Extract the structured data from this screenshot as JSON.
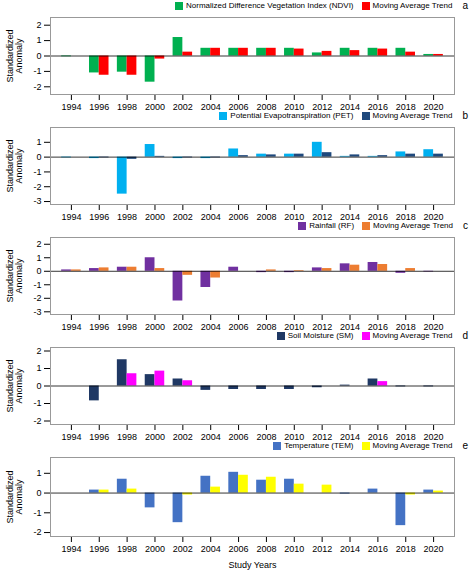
{
  "chart_data": [
    {
      "type": "bar",
      "title": "a",
      "x": [
        1994,
        1996,
        1998,
        2000,
        2002,
        2004,
        2006,
        2008,
        2010,
        2012,
        2014,
        2016,
        2018,
        2020
      ],
      "xlim": [
        1992.5,
        2021.5
      ],
      "xticks": [
        1994,
        1996,
        1998,
        2000,
        2002,
        2004,
        2006,
        2008,
        2010,
        2012,
        2014,
        2016,
        2018,
        2020
      ],
      "ylim": [
        -2.5,
        2.5
      ],
      "yticks": [
        -2,
        -1,
        0,
        1,
        2
      ],
      "ylabel": "Standardized\nAnomaly",
      "series": [
        {
          "name": "Normalized Difference Vegetation Index (NDVI)",
          "color": "#00b050",
          "values": [
            -0.05,
            -1.1,
            -1.05,
            -1.7,
            1.2,
            0.5,
            0.5,
            0.5,
            0.5,
            0.2,
            0.5,
            0.5,
            0.5,
            0.1
          ]
        },
        {
          "name": "Moving Average Trend",
          "color": "#ff0000",
          "values": [
            0.0,
            -1.25,
            -1.25,
            -0.2,
            0.25,
            0.5,
            0.5,
            0.5,
            0.45,
            0.3,
            0.35,
            0.45,
            0.25,
            0.1
          ]
        }
      ],
      "legend": "upper right",
      "grid": false
    },
    {
      "type": "bar",
      "title": "b",
      "x": [
        1994,
        1996,
        1998,
        2000,
        2002,
        2004,
        2006,
        2008,
        2010,
        2012,
        2014,
        2016,
        2018,
        2020
      ],
      "xlim": [
        1992.5,
        2021.5
      ],
      "xticks": [
        1994,
        1996,
        1998,
        2000,
        2002,
        2004,
        2006,
        2008,
        2010,
        2012,
        2014,
        2016,
        2018,
        2020
      ],
      "ylim": [
        -3.2,
        2.0
      ],
      "yticks": [
        -3,
        -2,
        -1,
        0,
        1
      ],
      "ylabel": "Standardized\nAnomaly",
      "series": [
        {
          "name": "Potential Evapotranspiration (PET)",
          "color": "#00b0f0",
          "values": [
            -0.05,
            -0.1,
            -2.5,
            0.85,
            -0.1,
            -0.1,
            0.55,
            0.2,
            0.2,
            1.0,
            0.05,
            0.05,
            0.35,
            0.5
          ]
        },
        {
          "name": "Moving Average Trend",
          "color": "#1f497d",
          "values": [
            0.0,
            -0.05,
            -0.15,
            0.05,
            -0.05,
            -0.05,
            0.1,
            0.15,
            0.2,
            0.3,
            0.15,
            0.1,
            0.2,
            0.2
          ]
        }
      ],
      "legend": "upper right",
      "grid": false
    },
    {
      "type": "bar",
      "title": "c",
      "x": [
        1994,
        1996,
        1998,
        2000,
        2002,
        2004,
        2006,
        2008,
        2010,
        2012,
        2014,
        2016,
        2018,
        2020
      ],
      "xlim": [
        1992.5,
        2021.5
      ],
      "xticks": [
        1994,
        1996,
        1998,
        2000,
        2002,
        2004,
        2006,
        2008,
        2010,
        2012,
        2014,
        2016,
        2018,
        2020
      ],
      "ylim": [
        -3.2,
        2.5
      ],
      "yticks": [
        -3,
        -2,
        -1,
        0,
        1,
        2
      ],
      "ylabel": "Standardized\nAnomaly",
      "series": [
        {
          "name": "Rainfall (RF)",
          "color": "#7030a0",
          "values": [
            0.1,
            0.2,
            0.3,
            1.0,
            -2.2,
            -1.2,
            0.3,
            -0.1,
            -0.1,
            0.25,
            0.55,
            0.65,
            -0.15,
            -0.05
          ]
        },
        {
          "name": "Moving Average Trend",
          "color": "#ed7d31",
          "values": [
            0.1,
            0.25,
            0.3,
            0.2,
            -0.3,
            -0.5,
            0.0,
            0.1,
            0.05,
            0.2,
            0.45,
            0.5,
            0.2,
            0.0
          ]
        }
      ],
      "legend": "upper right",
      "grid": false
    },
    {
      "type": "bar",
      "title": "d",
      "x": [
        1994,
        1996,
        1998,
        2000,
        2002,
        2004,
        2006,
        2008,
        2010,
        2012,
        2014,
        2016,
        2018,
        2020
      ],
      "xlim": [
        1992.5,
        2021.5
      ],
      "xticks": [
        1994,
        1996,
        1998,
        2000,
        2002,
        2004,
        2006,
        2008,
        2010,
        2012,
        2014,
        2016,
        2018,
        2020
      ],
      "ylim": [
        -2.2,
        2.2
      ],
      "yticks": [
        -2,
        -1,
        0,
        1,
        2
      ],
      "ylabel": "Standardized\nAnomaly",
      "series": [
        {
          "name": "Soil Moisture (SM)",
          "color": "#1f3864",
          "values": [
            0.0,
            -0.85,
            1.5,
            0.65,
            0.4,
            -0.25,
            -0.2,
            -0.2,
            -0.2,
            -0.1,
            0.05,
            0.4,
            -0.05,
            -0.05
          ]
        },
        {
          "name": "Moving Average Trend",
          "color": "#ff00ff",
          "values": [
            0.0,
            0.0,
            0.7,
            0.85,
            0.3,
            0.0,
            0.0,
            0.0,
            0.0,
            0.0,
            0.0,
            0.25,
            0.0,
            0.0
          ]
        }
      ],
      "legend": "upper right",
      "grid": false
    },
    {
      "type": "bar",
      "title": "e",
      "x": [
        1994,
        1996,
        1998,
        2000,
        2002,
        2004,
        2006,
        2008,
        2010,
        2012,
        2014,
        2016,
        2018,
        2020
      ],
      "xlim": [
        1992.5,
        2021.5
      ],
      "xticks": [
        1994,
        1996,
        1998,
        2000,
        2002,
        2004,
        2006,
        2008,
        2010,
        2012,
        2014,
        2016,
        2018,
        2020
      ],
      "ylim": [
        -2.2,
        1.8
      ],
      "yticks": [
        -2,
        -1,
        0,
        1
      ],
      "ylabel": "Standardized\nAnomaly",
      "xlabel": "Study Years",
      "series": [
        {
          "name": "Temperature (TEM)",
          "color": "#4472c4",
          "values": [
            0.0,
            0.15,
            0.7,
            -0.75,
            -1.5,
            0.85,
            1.05,
            0.65,
            0.7,
            0.0,
            -0.05,
            0.2,
            -1.65,
            0.15
          ]
        },
        {
          "name": "Moving Average Trend",
          "color": "#ffff00",
          "values": [
            0.0,
            0.15,
            0.2,
            0.0,
            -0.1,
            0.3,
            0.9,
            0.8,
            0.45,
            0.4,
            0.0,
            0.0,
            -0.1,
            0.1
          ]
        }
      ],
      "legend": "upper right",
      "grid": false
    }
  ]
}
